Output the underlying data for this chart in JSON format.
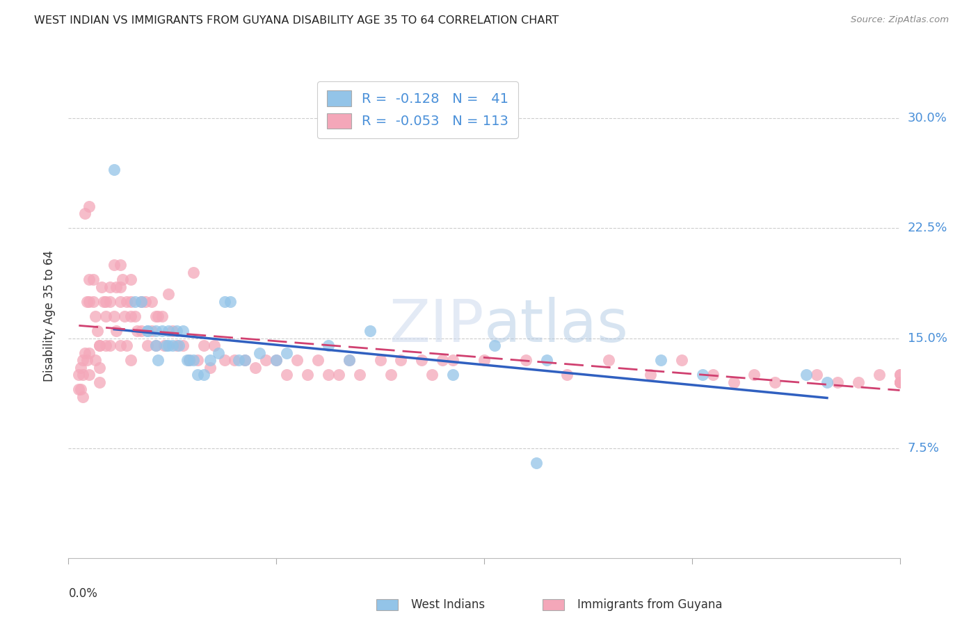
{
  "title": "WEST INDIAN VS IMMIGRANTS FROM GUYANA DISABILITY AGE 35 TO 64 CORRELATION CHART",
  "source": "Source: ZipAtlas.com",
  "ylabel": "Disability Age 35 to 64",
  "ytick_labels": [
    "7.5%",
    "15.0%",
    "22.5%",
    "30.0%"
  ],
  "ytick_values": [
    0.075,
    0.15,
    0.225,
    0.3
  ],
  "xlim": [
    0.0,
    0.4
  ],
  "ylim": [
    0.0,
    0.33
  ],
  "blue_color": "#93c4e8",
  "pink_color": "#f4a7b9",
  "blue_line_color": "#3060c0",
  "pink_line_color": "#d04070",
  "blue_label": "West Indians",
  "pink_label": "Immigrants from Guyana",
  "watermark": "ZIPatlas",
  "blue_scatter_x": [
    0.022,
    0.032,
    0.035,
    0.038,
    0.038,
    0.042,
    0.042,
    0.043,
    0.045,
    0.047,
    0.048,
    0.048,
    0.05,
    0.052,
    0.053,
    0.055,
    0.057,
    0.058,
    0.06,
    0.062,
    0.065,
    0.068,
    0.072,
    0.075,
    0.078,
    0.082,
    0.085,
    0.092,
    0.1,
    0.105,
    0.125,
    0.135,
    0.145,
    0.185,
    0.205,
    0.225,
    0.23,
    0.285,
    0.305,
    0.355,
    0.365
  ],
  "blue_scatter_y": [
    0.265,
    0.175,
    0.175,
    0.155,
    0.155,
    0.155,
    0.145,
    0.135,
    0.155,
    0.145,
    0.155,
    0.145,
    0.145,
    0.155,
    0.145,
    0.155,
    0.135,
    0.135,
    0.135,
    0.125,
    0.125,
    0.135,
    0.14,
    0.175,
    0.175,
    0.135,
    0.135,
    0.14,
    0.135,
    0.14,
    0.145,
    0.135,
    0.155,
    0.125,
    0.145,
    0.065,
    0.135,
    0.135,
    0.125,
    0.125,
    0.12
  ],
  "pink_scatter_x": [
    0.005,
    0.005,
    0.006,
    0.006,
    0.007,
    0.007,
    0.007,
    0.008,
    0.008,
    0.009,
    0.009,
    0.01,
    0.01,
    0.01,
    0.01,
    0.01,
    0.012,
    0.012,
    0.013,
    0.013,
    0.014,
    0.015,
    0.015,
    0.015,
    0.015,
    0.016,
    0.017,
    0.018,
    0.018,
    0.018,
    0.02,
    0.02,
    0.02,
    0.022,
    0.022,
    0.023,
    0.023,
    0.025,
    0.025,
    0.025,
    0.025,
    0.026,
    0.027,
    0.028,
    0.028,
    0.03,
    0.03,
    0.03,
    0.03,
    0.032,
    0.033,
    0.035,
    0.035,
    0.037,
    0.038,
    0.04,
    0.04,
    0.042,
    0.042,
    0.043,
    0.045,
    0.046,
    0.048,
    0.05,
    0.052,
    0.055,
    0.058,
    0.06,
    0.062,
    0.065,
    0.068,
    0.07,
    0.075,
    0.08,
    0.085,
    0.09,
    0.095,
    0.1,
    0.105,
    0.11,
    0.115,
    0.12,
    0.125,
    0.13,
    0.135,
    0.14,
    0.15,
    0.155,
    0.16,
    0.17,
    0.175,
    0.18,
    0.185,
    0.2,
    0.22,
    0.24,
    0.26,
    0.28,
    0.295,
    0.31,
    0.32,
    0.33,
    0.34,
    0.36,
    0.37,
    0.38,
    0.39,
    0.4,
    0.4,
    0.4,
    0.4,
    0.4,
    0.4
  ],
  "pink_scatter_y": [
    0.125,
    0.115,
    0.13,
    0.115,
    0.135,
    0.125,
    0.11,
    0.235,
    0.14,
    0.175,
    0.135,
    0.24,
    0.19,
    0.175,
    0.14,
    0.125,
    0.19,
    0.175,
    0.165,
    0.135,
    0.155,
    0.145,
    0.145,
    0.13,
    0.12,
    0.185,
    0.175,
    0.175,
    0.165,
    0.145,
    0.185,
    0.175,
    0.145,
    0.2,
    0.165,
    0.185,
    0.155,
    0.2,
    0.185,
    0.175,
    0.145,
    0.19,
    0.165,
    0.175,
    0.145,
    0.19,
    0.175,
    0.165,
    0.135,
    0.165,
    0.155,
    0.175,
    0.155,
    0.175,
    0.145,
    0.175,
    0.155,
    0.165,
    0.145,
    0.165,
    0.165,
    0.145,
    0.18,
    0.155,
    0.145,
    0.145,
    0.135,
    0.195,
    0.135,
    0.145,
    0.13,
    0.145,
    0.135,
    0.135,
    0.135,
    0.13,
    0.135,
    0.135,
    0.125,
    0.135,
    0.125,
    0.135,
    0.125,
    0.125,
    0.135,
    0.125,
    0.135,
    0.125,
    0.135,
    0.135,
    0.125,
    0.135,
    0.135,
    0.135,
    0.135,
    0.125,
    0.135,
    0.125,
    0.135,
    0.125,
    0.12,
    0.125,
    0.12,
    0.125,
    0.12,
    0.12,
    0.125,
    0.12,
    0.12,
    0.125,
    0.12,
    0.12,
    0.125
  ]
}
